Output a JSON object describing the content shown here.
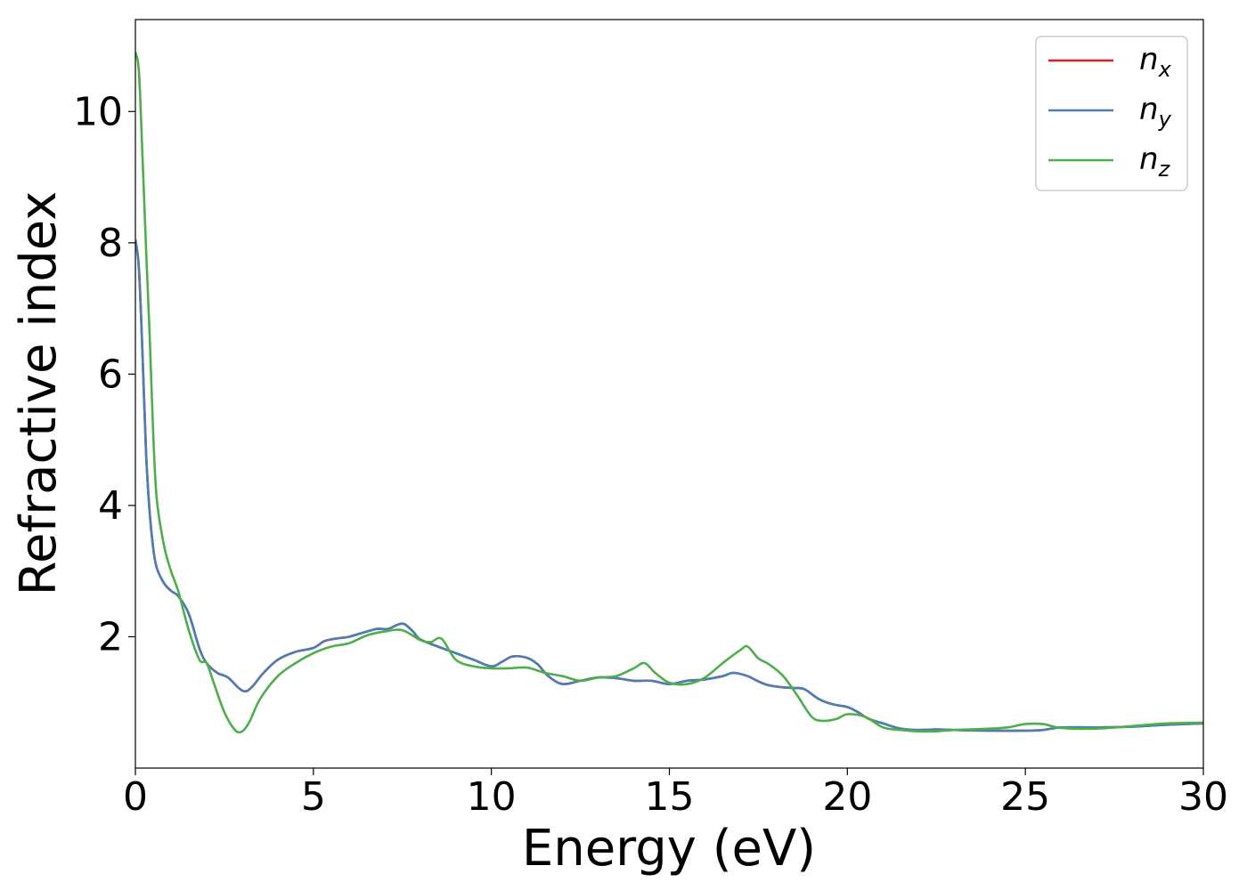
{
  "chart_data": {
    "type": "line",
    "title": "",
    "xlabel": "Energy (eV)",
    "ylabel": "Refractive index",
    "xlim": [
      0,
      30
    ],
    "ylim": [
      0,
      11.4
    ],
    "xticks": [
      0,
      5,
      10,
      15,
      20,
      25,
      30
    ],
    "yticks": [
      2,
      4,
      6,
      8,
      10
    ],
    "grid": false,
    "legend_position": "top-right",
    "series": [
      {
        "name": "n",
        "subscript": "x",
        "color": "#e41a1c",
        "x": [
          0,
          0.1,
          0.2,
          0.3,
          0.4,
          0.5,
          0.6,
          0.8,
          1.0,
          1.2,
          1.5,
          1.8,
          2.0,
          2.3,
          2.6,
          2.9,
          3.1,
          3.3,
          3.6,
          4.0,
          4.5,
          5.0,
          5.3,
          5.6,
          6.0,
          6.5,
          6.8,
          7.1,
          7.5,
          7.8,
          8.0,
          8.5,
          9.0,
          9.5,
          10.0,
          10.3,
          10.6,
          11.0,
          11.3,
          11.6,
          12.0,
          12.5,
          13.0,
          13.5,
          14.0,
          14.5,
          15.0,
          15.5,
          16.0,
          16.5,
          16.8,
          17.2,
          17.5,
          17.8,
          18.2,
          18.5,
          18.8,
          19.2,
          19.6,
          20.0,
          20.3,
          20.6,
          21.0,
          21.5,
          22.0,
          22.5,
          23.0,
          24.0,
          25.0,
          25.5,
          26.0,
          27.0,
          28.0,
          29.0,
          30.0
        ],
        "y": [
          8.05,
          7.6,
          6.3,
          4.8,
          3.9,
          3.35,
          3.05,
          2.82,
          2.7,
          2.62,
          2.35,
          1.82,
          1.6,
          1.45,
          1.38,
          1.22,
          1.17,
          1.25,
          1.45,
          1.65,
          1.77,
          1.83,
          1.93,
          1.97,
          2.0,
          2.08,
          2.12,
          2.12,
          2.2,
          2.08,
          1.96,
          1.85,
          1.75,
          1.65,
          1.55,
          1.62,
          1.7,
          1.68,
          1.58,
          1.4,
          1.28,
          1.33,
          1.38,
          1.37,
          1.33,
          1.33,
          1.28,
          1.33,
          1.35,
          1.4,
          1.45,
          1.4,
          1.32,
          1.26,
          1.23,
          1.22,
          1.2,
          1.05,
          0.97,
          0.93,
          0.85,
          0.75,
          0.68,
          0.6,
          0.58,
          0.59,
          0.58,
          0.57,
          0.57,
          0.58,
          0.62,
          0.62,
          0.63,
          0.66,
          0.68
        ]
      },
      {
        "name": "n",
        "subscript": "y",
        "color": "#4a7fb5",
        "x": [
          0,
          0.1,
          0.2,
          0.3,
          0.4,
          0.5,
          0.6,
          0.8,
          1.0,
          1.2,
          1.5,
          1.8,
          2.0,
          2.3,
          2.6,
          2.9,
          3.1,
          3.3,
          3.6,
          4.0,
          4.5,
          5.0,
          5.3,
          5.6,
          6.0,
          6.5,
          6.8,
          7.1,
          7.5,
          7.8,
          8.0,
          8.5,
          9.0,
          9.5,
          10.0,
          10.3,
          10.6,
          11.0,
          11.3,
          11.6,
          12.0,
          12.5,
          13.0,
          13.5,
          14.0,
          14.5,
          15.0,
          15.5,
          16.0,
          16.5,
          16.8,
          17.2,
          17.5,
          17.8,
          18.2,
          18.5,
          18.8,
          19.2,
          19.6,
          20.0,
          20.3,
          20.6,
          21.0,
          21.5,
          22.0,
          22.5,
          23.0,
          24.0,
          25.0,
          25.5,
          26.0,
          27.0,
          28.0,
          29.0,
          30.0
        ],
        "y": [
          8.05,
          7.6,
          6.3,
          4.8,
          3.9,
          3.35,
          3.05,
          2.82,
          2.7,
          2.62,
          2.35,
          1.82,
          1.6,
          1.45,
          1.38,
          1.22,
          1.17,
          1.25,
          1.45,
          1.65,
          1.77,
          1.83,
          1.93,
          1.97,
          2.0,
          2.08,
          2.12,
          2.12,
          2.2,
          2.08,
          1.96,
          1.85,
          1.75,
          1.65,
          1.55,
          1.62,
          1.7,
          1.68,
          1.58,
          1.4,
          1.28,
          1.33,
          1.38,
          1.37,
          1.33,
          1.33,
          1.28,
          1.33,
          1.35,
          1.4,
          1.45,
          1.4,
          1.32,
          1.26,
          1.23,
          1.22,
          1.2,
          1.05,
          0.97,
          0.93,
          0.85,
          0.75,
          0.68,
          0.6,
          0.58,
          0.59,
          0.58,
          0.57,
          0.57,
          0.58,
          0.62,
          0.62,
          0.63,
          0.66,
          0.68
        ]
      },
      {
        "name": "n",
        "subscript": "z",
        "color": "#4daf4a",
        "x": [
          0,
          0.1,
          0.2,
          0.3,
          0.4,
          0.5,
          0.6,
          0.8,
          1.0,
          1.2,
          1.5,
          1.8,
          2.0,
          2.2,
          2.5,
          2.8,
          3.0,
          3.2,
          3.5,
          4.0,
          4.5,
          5.0,
          5.5,
          6.0,
          6.5,
          7.0,
          7.5,
          8.0,
          8.3,
          8.6,
          9.0,
          9.5,
          10.0,
          10.5,
          11.0,
          11.5,
          12.0,
          12.5,
          13.0,
          13.5,
          14.0,
          14.3,
          14.6,
          15.0,
          15.5,
          16.0,
          16.5,
          17.0,
          17.2,
          17.5,
          17.8,
          18.2,
          18.6,
          19.0,
          19.3,
          19.7,
          20.0,
          20.5,
          21.0,
          21.5,
          22.0,
          22.5,
          23.0,
          23.5,
          24.0,
          24.5,
          25.0,
          25.5,
          26.0,
          27.0,
          28.0,
          29.0,
          30.0
        ],
        "y": [
          10.9,
          10.6,
          9.3,
          7.9,
          6.6,
          5.1,
          4.1,
          3.4,
          3.0,
          2.7,
          2.1,
          1.65,
          1.6,
          1.3,
          0.85,
          0.58,
          0.56,
          0.7,
          1.05,
          1.4,
          1.6,
          1.75,
          1.85,
          1.9,
          2.02,
          2.08,
          2.1,
          1.95,
          1.92,
          1.97,
          1.65,
          1.55,
          1.52,
          1.52,
          1.53,
          1.45,
          1.4,
          1.33,
          1.38,
          1.4,
          1.52,
          1.6,
          1.45,
          1.3,
          1.28,
          1.38,
          1.6,
          1.8,
          1.85,
          1.67,
          1.58,
          1.4,
          1.1,
          0.78,
          0.72,
          0.75,
          0.82,
          0.78,
          0.62,
          0.58,
          0.56,
          0.56,
          0.58,
          0.59,
          0.6,
          0.62,
          0.67,
          0.67,
          0.61,
          0.6,
          0.64,
          0.68,
          0.69
        ]
      }
    ]
  }
}
